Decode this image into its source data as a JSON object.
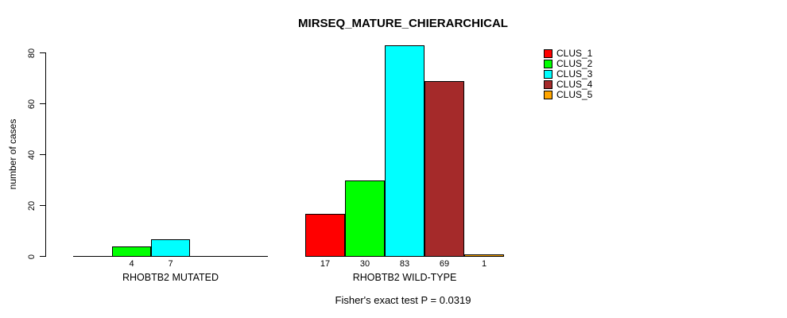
{
  "chart_data": {
    "type": "bar",
    "title": "MIRSEQ_MATURE_CHIERARCHICAL",
    "ylabel": "number of cases",
    "xlabel": "",
    "ylim": [
      0,
      83
    ],
    "yticks": [
      0,
      20,
      40,
      60,
      80
    ],
    "grid": false,
    "legend_position": "right",
    "categories": [
      "RHOBTB2 MUTATED",
      "RHOBTB2 WILD-TYPE"
    ],
    "series": [
      {
        "name": "CLUS_1",
        "color": "#FF0000",
        "values": [
          0,
          17
        ]
      },
      {
        "name": "CLUS_2",
        "color": "#00FF00",
        "values": [
          4,
          30
        ]
      },
      {
        "name": "CLUS_3",
        "color": "#00FFFF",
        "values": [
          7,
          83
        ]
      },
      {
        "name": "CLUS_4",
        "color": "#A52A2A",
        "values": [
          0,
          69
        ]
      },
      {
        "name": "CLUS_5",
        "color": "#FFA500",
        "values": [
          0,
          1
        ]
      }
    ],
    "visible_bar_labels": [
      [
        4,
        7
      ],
      [
        17,
        30,
        83,
        69,
        1
      ]
    ],
    "caption": "Fisher's exact test P = 0.0319"
  },
  "colors": {
    "background": "#FFFFFF",
    "axis": "#000000",
    "text": "#000000"
  }
}
